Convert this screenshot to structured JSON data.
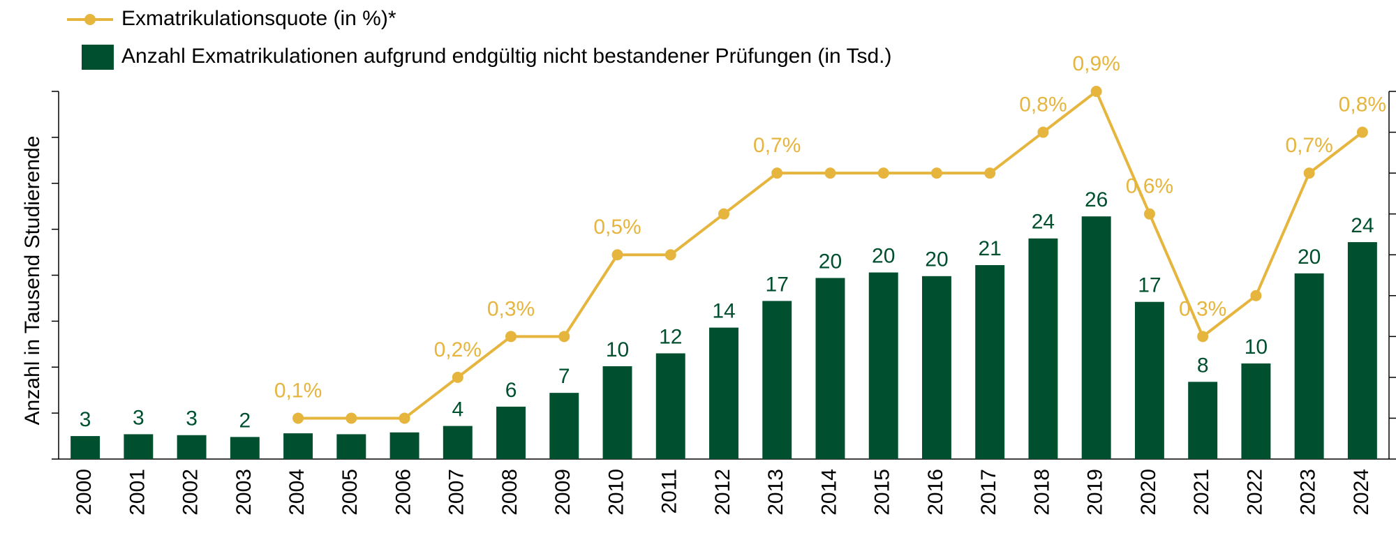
{
  "chart_data": {
    "type": "bar",
    "y_axis_label": "Anzahl in Tausend Studierende",
    "categories": [
      "2000",
      "2001",
      "2002",
      "2003",
      "2004",
      "2005",
      "2006",
      "2007",
      "2008",
      "2009",
      "2010",
      "2011",
      "2012",
      "2013",
      "2014",
      "2015",
      "2016",
      "2017",
      "2018",
      "2019",
      "2020",
      "2021",
      "2022",
      "2023",
      "2024"
    ],
    "series": [
      {
        "name": "Exmatrikulationsquote (in %)*",
        "type": "line",
        "axis": "y2",
        "color": "#e5b53d",
        "values": [
          null,
          null,
          null,
          null,
          0.1,
          0.1,
          0.1,
          0.2,
          0.3,
          0.3,
          0.5,
          0.5,
          0.6,
          0.7,
          0.7,
          0.7,
          0.7,
          0.7,
          0.8,
          0.9,
          0.6,
          0.3,
          0.4,
          0.7,
          0.8
        ],
        "value_labels": [
          null,
          null,
          null,
          null,
          "0,1%",
          null,
          null,
          "0,2%",
          "0,3%",
          null,
          "0,5%",
          null,
          null,
          "0,7%",
          null,
          null,
          null,
          null,
          "0,8%",
          "0,9%",
          "0,6%",
          "0,3%",
          null,
          "0,7%",
          "0,8%"
        ]
      },
      {
        "name": "Anzahl Exmatrikulationen aufgrund endgültig nicht bestandener Prüfungen (in Tsd.)",
        "type": "bar",
        "color": "#00502f",
        "values": [
          2.5,
          2.7,
          2.6,
          2.4,
          2.8,
          2.7,
          2.9,
          3.6,
          5.7,
          7.2,
          10.1,
          11.5,
          14.3,
          17.2,
          19.7,
          20.3,
          19.9,
          21.1,
          24.0,
          26.4,
          17.1,
          8.4,
          10.4,
          20.2,
          23.6
        ],
        "value_labels": [
          "3",
          "3",
          "3",
          "2",
          null,
          null,
          null,
          "4",
          "6",
          "7",
          "10",
          "12",
          "14",
          "17",
          "20",
          "20",
          "20",
          "21",
          "24",
          "26",
          "17",
          "8",
          "10",
          "20",
          "24"
        ]
      }
    ],
    "ylim": [
      0,
      40
    ],
    "yticks": [
      0,
      5,
      10,
      15,
      20,
      25,
      30,
      35,
      40
    ],
    "y2lim": [
      0,
      0.9
    ],
    "y2ticks": [
      0,
      0.1,
      0.2,
      0.3,
      0.4,
      0.5,
      0.6,
      0.7,
      0.8,
      0.9
    ]
  }
}
